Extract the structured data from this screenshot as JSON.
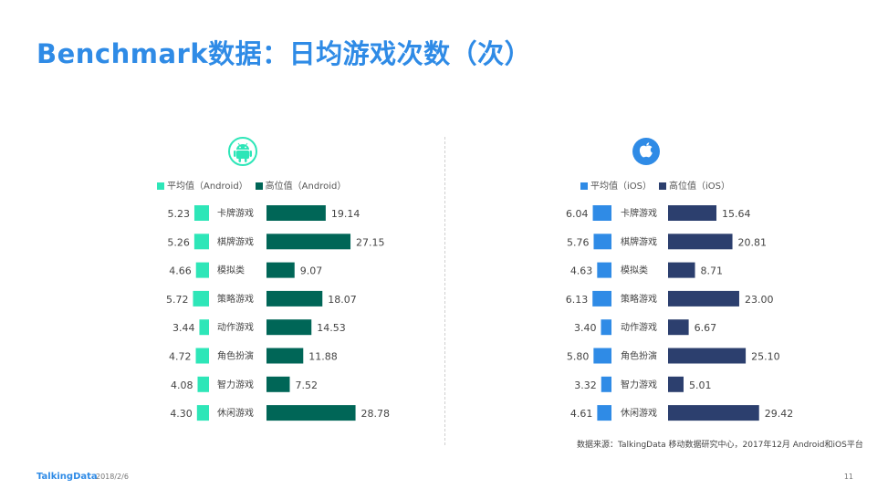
{
  "title": "Benchmark数据：日均游戏次数（次）",
  "chart_data": [
    {
      "type": "bar",
      "platform": "Android",
      "categories": [
        "卡牌游戏",
        "棋牌游戏",
        "模拟类",
        "策略游戏",
        "动作游戏",
        "角色扮演",
        "智力游戏",
        "休闲游戏"
      ],
      "series": [
        {
          "name": "平均值（Android）",
          "values": [
            5.23,
            5.26,
            4.66,
            5.72,
            3.44,
            4.72,
            4.08,
            4.3
          ],
          "labels": [
            "5.23",
            "5.26",
            "4.66",
            "5.72",
            "3.44",
            "4.72",
            "4.08",
            "4.30"
          ],
          "color": "#2ee6b8"
        },
        {
          "name": "高位值（Android）",
          "values": [
            19.14,
            27.15,
            9.07,
            18.07,
            14.53,
            11.88,
            7.52,
            28.78
          ],
          "labels": [
            "19.14",
            "27.15",
            "9.07",
            "18.07",
            "14.53",
            "11.88",
            "7.52",
            "28.78"
          ],
          "color": "#006657"
        }
      ],
      "icon": "android-icon"
    },
    {
      "type": "bar",
      "platform": "iOS",
      "categories": [
        "卡牌游戏",
        "棋牌游戏",
        "模拟类",
        "策略游戏",
        "动作游戏",
        "角色扮演",
        "智力游戏",
        "休闲游戏"
      ],
      "series": [
        {
          "name": "平均值（iOS）",
          "values": [
            6.04,
            5.76,
            4.63,
            6.13,
            3.4,
            5.8,
            3.32,
            4.61
          ],
          "labels": [
            "6.04",
            "5.76",
            "4.63",
            "6.13",
            "3.40",
            "5.80",
            "3.32",
            "4.61"
          ],
          "color": "#2f8be6"
        },
        {
          "name": "高位值（iOS）",
          "values": [
            15.64,
            20.81,
            8.71,
            23.0,
            6.67,
            25.1,
            5.01,
            29.42
          ],
          "labels": [
            "15.64",
            "20.81",
            "8.71",
            "23.00",
            "6.67",
            "25.10",
            "5.01",
            "29.42"
          ],
          "color": "#2c3f6e"
        }
      ],
      "icon": "apple-icon"
    }
  ],
  "source": "数据来源：TalkingData 移动数据研究中心，2017年12月 Android和iOS平台",
  "footer": {
    "logo": "TalkingData",
    "date": "2018/2/6",
    "page": "11"
  }
}
